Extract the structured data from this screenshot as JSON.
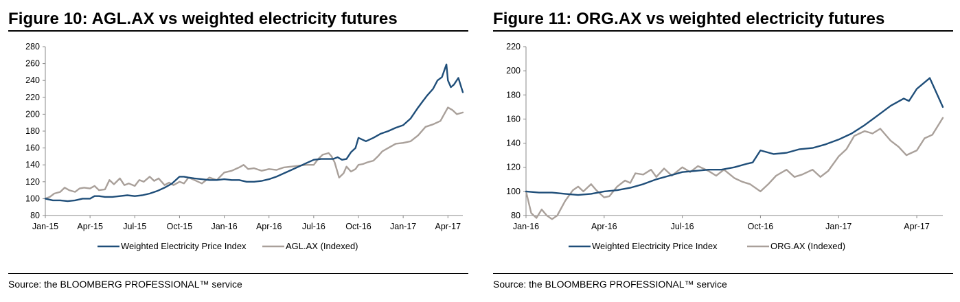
{
  "chart_data": [
    {
      "type": "line",
      "title": "Figure 10: AGL.AX vs weighted electricity futures",
      "source": "Source: the BLOOMBERG PROFESSIONAL™ service",
      "ylim": [
        80,
        280
      ],
      "yticks": [
        80,
        100,
        120,
        140,
        160,
        180,
        200,
        220,
        240,
        260,
        280
      ],
      "xlim": [
        0,
        28
      ],
      "xticks": [
        {
          "label": "Jan-15",
          "x": 0
        },
        {
          "label": "Apr-15",
          "x": 3
        },
        {
          "label": "Jul-15",
          "x": 6
        },
        {
          "label": "Oct-15",
          "x": 9
        },
        {
          "label": "Jan-16",
          "x": 12
        },
        {
          "label": "Apr-16",
          "x": 15
        },
        {
          "label": "Jul-16",
          "x": 18
        },
        {
          "label": "Oct-16",
          "x": 21
        },
        {
          "label": "Jan-17",
          "x": 24
        },
        {
          "label": "Apr-17",
          "x": 27
        }
      ],
      "legend_position": "bottom",
      "series": [
        {
          "name": "Weighted Electricity Price Index",
          "color": "#1F4E79",
          "x": [
            0,
            0.5,
            1,
            1.5,
            2,
            2.5,
            3,
            3.3,
            3.6,
            4,
            4.5,
            5,
            5.5,
            6,
            6.5,
            7,
            7.5,
            8,
            8.5,
            9,
            9.3,
            9.6,
            10,
            10.5,
            11,
            11.5,
            12,
            12.5,
            13,
            13.5,
            14,
            14.5,
            15,
            15.5,
            16,
            16.5,
            17,
            17.5,
            18,
            18.5,
            19,
            19.3,
            19.6,
            19.9,
            20.2,
            20.5,
            20.8,
            21,
            21.5,
            22,
            22.5,
            23,
            23.5,
            24,
            24.5,
            25,
            25.3,
            25.6,
            26,
            26.3,
            26.6,
            26.9,
            27,
            27.2,
            27.4,
            27.7,
            28
          ],
          "values": [
            100,
            98,
            98,
            97,
            98,
            100,
            100,
            103,
            103,
            102,
            102,
            103,
            104,
            103,
            104,
            106,
            109,
            113,
            118,
            126,
            126,
            125,
            124,
            123,
            122,
            122,
            123,
            122,
            122,
            120,
            120,
            121,
            123,
            126,
            130,
            134,
            138,
            142,
            146,
            147,
            147,
            147,
            149,
            146,
            147,
            155,
            160,
            172,
            168,
            172,
            177,
            180,
            184,
            187,
            195,
            208,
            215,
            222,
            230,
            240,
            244,
            259,
            240,
            232,
            235,
            243,
            226
          ]
        },
        {
          "name": "AGL.AX (Indexed)",
          "color": "#A9A09A",
          "x": [
            0,
            0.3,
            0.6,
            1,
            1.3,
            1.6,
            2,
            2.3,
            2.6,
            3,
            3.3,
            3.6,
            4,
            4.3,
            4.6,
            5,
            5.3,
            5.6,
            6,
            6.3,
            6.6,
            7,
            7.3,
            7.6,
            8,
            8.3,
            8.6,
            9,
            9.3,
            9.6,
            10,
            10.5,
            11,
            11.5,
            12,
            12.5,
            13,
            13.3,
            13.6,
            14,
            14.5,
            15,
            15.5,
            16,
            16.5,
            17,
            17.5,
            18,
            18.3,
            18.6,
            19,
            19.2,
            19.4,
            19.7,
            20,
            20.2,
            20.5,
            20.8,
            21,
            21.3,
            21.6,
            22,
            22.3,
            22.6,
            23,
            23.5,
            24,
            24.5,
            25,
            25.5,
            26,
            26.5,
            27,
            27.3,
            27.6,
            28
          ],
          "values": [
            100,
            102,
            106,
            108,
            113,
            110,
            108,
            112,
            113,
            112,
            115,
            110,
            111,
            122,
            117,
            124,
            116,
            118,
            115,
            122,
            120,
            126,
            121,
            124,
            116,
            119,
            116,
            120,
            118,
            125,
            122,
            118,
            125,
            122,
            131,
            133,
            137,
            140,
            135,
            136,
            133,
            135,
            134,
            137,
            138,
            139,
            140,
            140,
            147,
            152,
            154,
            150,
            143,
            125,
            130,
            138,
            132,
            135,
            140,
            141,
            143,
            145,
            150,
            156,
            160,
            165,
            166,
            168,
            175,
            185,
            188,
            192,
            208,
            205,
            200,
            202
          ]
        }
      ],
      "legend": [
        "Weighted Electricity Price Index",
        "AGL.AX (Indexed)"
      ]
    },
    {
      "type": "line",
      "title": "Figure 11: ORG.AX vs weighted electricity futures",
      "source": "Source: the BLOOMBERG PROFESSIONAL™ service",
      "ylim": [
        80,
        220
      ],
      "yticks": [
        80,
        100,
        120,
        140,
        160,
        180,
        200,
        220
      ],
      "xlim": [
        0,
        16
      ],
      "xticks": [
        {
          "label": "Jan-16",
          "x": 0
        },
        {
          "label": "Apr-16",
          "x": 3
        },
        {
          "label": "Jul-16",
          "x": 6
        },
        {
          "label": "Oct-16",
          "x": 9
        },
        {
          "label": "Jan-17",
          "x": 12
        },
        {
          "label": "Apr-17",
          "x": 15
        }
      ],
      "legend_position": "bottom",
      "series": [
        {
          "name": "Weighted Electricity Price Index",
          "color": "#1F4E79",
          "x": [
            0,
            0.5,
            1,
            1.5,
            2,
            2.5,
            3,
            3.5,
            4,
            4.5,
            5,
            5.5,
            6,
            6.5,
            7,
            7.5,
            8,
            8.5,
            8.7,
            9,
            9.5,
            10,
            10.5,
            11,
            11.5,
            12,
            12.5,
            13,
            13.5,
            14,
            14.5,
            14.7,
            15,
            15.5,
            16
          ],
          "values": [
            100,
            99,
            99,
            98,
            97,
            98,
            100,
            101,
            103,
            106,
            110,
            113,
            116,
            117,
            118,
            118,
            120,
            123,
            124,
            134,
            131,
            132,
            135,
            136,
            139,
            143,
            148,
            155,
            163,
            171,
            177,
            175,
            185,
            194,
            170
          ]
        },
        {
          "name": "ORG.AX (Indexed)",
          "color": "#A9A09A",
          "x": [
            0,
            0.2,
            0.4,
            0.6,
            0.8,
            1,
            1.2,
            1.5,
            1.8,
            2,
            2.2,
            2.5,
            2.7,
            3,
            3.2,
            3.5,
            3.8,
            4,
            4.2,
            4.5,
            4.8,
            5,
            5.3,
            5.6,
            6,
            6.3,
            6.6,
            7,
            7.3,
            7.6,
            8,
            8.3,
            8.6,
            9,
            9.3,
            9.6,
            10,
            10.3,
            10.6,
            11,
            11.3,
            11.6,
            12,
            12.3,
            12.6,
            13,
            13.3,
            13.6,
            14,
            14.3,
            14.6,
            15,
            15.3,
            15.6,
            16
          ],
          "values": [
            100,
            82,
            78,
            85,
            80,
            77,
            80,
            92,
            101,
            104,
            100,
            106,
            101,
            95,
            96,
            104,
            109,
            107,
            115,
            114,
            118,
            112,
            119,
            113,
            120,
            116,
            121,
            117,
            113,
            118,
            111,
            108,
            106,
            100,
            106,
            113,
            118,
            112,
            114,
            118,
            112,
            117,
            129,
            135,
            146,
            150,
            148,
            152,
            142,
            137,
            130,
            134,
            144,
            147,
            161
          ]
        }
      ],
      "legend": [
        "Weighted Electricity Price Index",
        "ORG.AX (Indexed)"
      ]
    }
  ]
}
